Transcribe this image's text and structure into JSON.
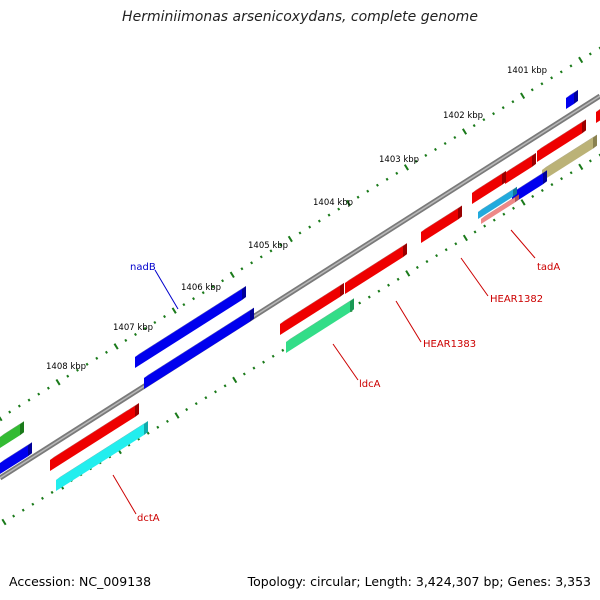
{
  "title": "Herminiimonas arsenicoxydans, complete genome",
  "footer": {
    "accession": "Accession: NC_009138",
    "summary": "Topology: circular; Length: 3,424,307 bp; Genes: 3,353"
  },
  "colors": {
    "backbone": "#888888",
    "tick": "#1a7a1a",
    "tick_label": "#000000",
    "gene_label_blue": "#0000cc",
    "gene_label_red": "#cc0000"
  },
  "ticks": [
    "1401 kbp",
    "1402 kbp",
    "1403 kbp",
    "1404 kbp",
    "1405 kbp",
    "1406 kbp",
    "1407 kbp",
    "1408 kbp"
  ],
  "gene_labels": [
    {
      "text": "nadB",
      "color": "#0000cc"
    },
    {
      "text": "tadA",
      "color": "#cc0000"
    },
    {
      "text": "HEAR1382",
      "color": "#cc0000"
    },
    {
      "text": "HEAR1383",
      "color": "#cc0000"
    },
    {
      "text": "ldcA",
      "color": "#cc0000"
    },
    {
      "text": "dctA",
      "color": "#cc0000"
    }
  ]
}
